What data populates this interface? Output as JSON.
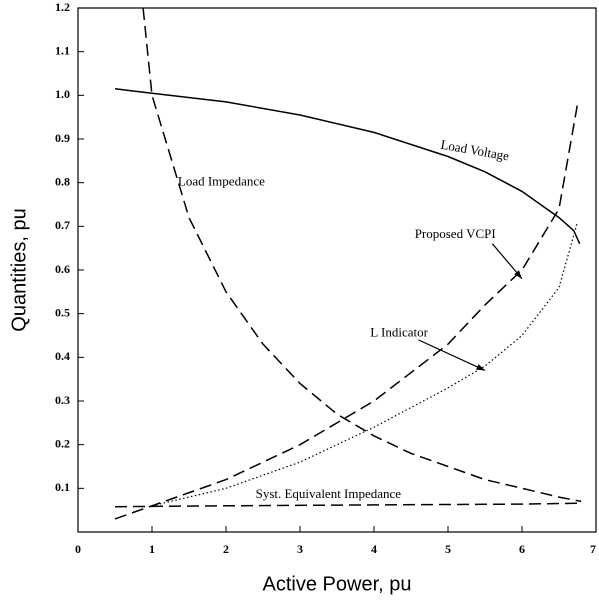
{
  "chart_data": {
    "type": "line",
    "x_label": "Active Power, pu",
    "y_label": "Quantities, pu",
    "xlim": [
      0,
      7
    ],
    "ylim": [
      0,
      1.2
    ],
    "xticks": [
      0,
      1,
      2,
      3,
      4,
      5,
      6,
      7
    ],
    "yticks": [
      0.1,
      0.2,
      0.3,
      0.4,
      0.5,
      0.6,
      0.7,
      0.8,
      0.9,
      {
        "value": 1.0,
        "label": "1.0"
      },
      1.1,
      1.2
    ],
    "series": [
      {
        "name": "Load Voltage",
        "color": "#000000",
        "line_style": "solid",
        "x": [
          0.5,
          1,
          2,
          3,
          4,
          5,
          5.5,
          6,
          6.5,
          6.7,
          6.78
        ],
        "values": [
          1.015,
          1.005,
          0.985,
          0.955,
          0.915,
          0.86,
          0.825,
          0.78,
          0.72,
          0.69,
          0.66
        ]
      },
      {
        "name": "Load Impedance",
        "color": "#000000",
        "line_style": "dashed",
        "x": [
          0.88,
          1,
          1.5,
          2,
          2.5,
          3,
          3.5,
          4,
          4.5,
          5,
          5.5,
          6,
          6.5,
          6.8
        ],
        "values": [
          1.2,
          1.0,
          0.72,
          0.55,
          0.43,
          0.34,
          0.27,
          0.22,
          0.18,
          0.15,
          0.12,
          0.1,
          0.08,
          0.07
        ]
      },
      {
        "name": "Proposed VCPI",
        "color": "#000000",
        "line_style": "dashed",
        "x": [
          0.5,
          1,
          2,
          3,
          4,
          5,
          5.5,
          6,
          6.5,
          6.75
        ],
        "values": [
          0.03,
          0.06,
          0.12,
          0.2,
          0.3,
          0.43,
          0.52,
          0.6,
          0.74,
          0.98
        ]
      },
      {
        "name": "L Indicator",
        "color": "#000000",
        "line_style": "dotted",
        "x": [
          1,
          2,
          3,
          4,
          5,
          5.5,
          6,
          6.5,
          6.75
        ],
        "values": [
          0.06,
          0.1,
          0.16,
          0.24,
          0.33,
          0.38,
          0.45,
          0.56,
          0.71
        ]
      },
      {
        "name": "Syst. Equivalent Impedance",
        "color": "#000000",
        "line_style": "dashed",
        "x": [
          0.5,
          2,
          4,
          6,
          6.8
        ],
        "values": [
          0.058,
          0.06,
          0.062,
          0.064,
          0.066
        ]
      }
    ]
  }
}
